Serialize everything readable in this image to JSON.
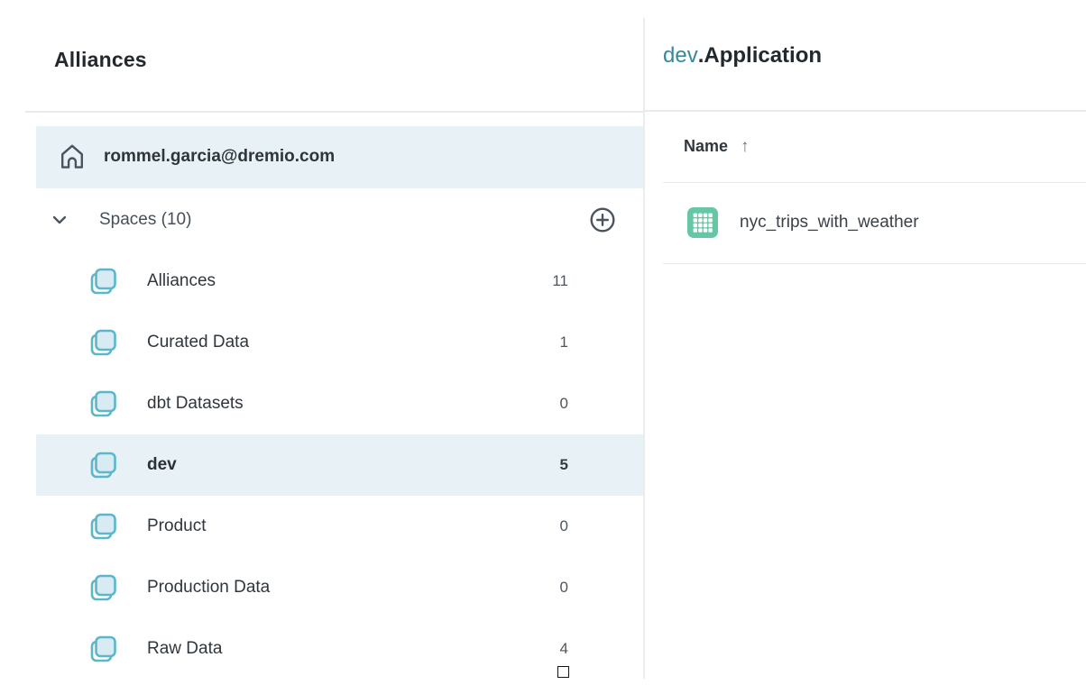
{
  "left_panel": {
    "title": "Alliances",
    "home_item": {
      "label": "rommel.garcia@dremio.com"
    },
    "spaces_header": {
      "label": "Spaces (10)"
    },
    "spaces": [
      {
        "label": "Alliances",
        "count": "11",
        "selected": false
      },
      {
        "label": "Curated Data",
        "count": "1",
        "selected": false
      },
      {
        "label": "dbt Datasets",
        "count": "0",
        "selected": false
      },
      {
        "label": "dev",
        "count": "5",
        "selected": true
      },
      {
        "label": "Product",
        "count": "0",
        "selected": false
      },
      {
        "label": "Production Data",
        "count": "0",
        "selected": false
      },
      {
        "label": "Raw Data",
        "count": "4",
        "selected": false
      }
    ]
  },
  "right_panel": {
    "breadcrumb": {
      "space": "dev",
      "separator": ".",
      "entity": "Application"
    },
    "table": {
      "columns": [
        {
          "label": "Name",
          "sort_indicator": "↑"
        }
      ],
      "rows": [
        {
          "name": "nyc_trips_with_weather",
          "icon": "table-icon"
        }
      ]
    }
  },
  "colors": {
    "accent-teal": "#38879B",
    "icon-teal": "#5BB7C9",
    "icon-fill": "#D9EBF2",
    "highlight-bg": "#E8F1F5",
    "divider": "#E9EAEB",
    "dataset-green": "#66C7A5"
  }
}
